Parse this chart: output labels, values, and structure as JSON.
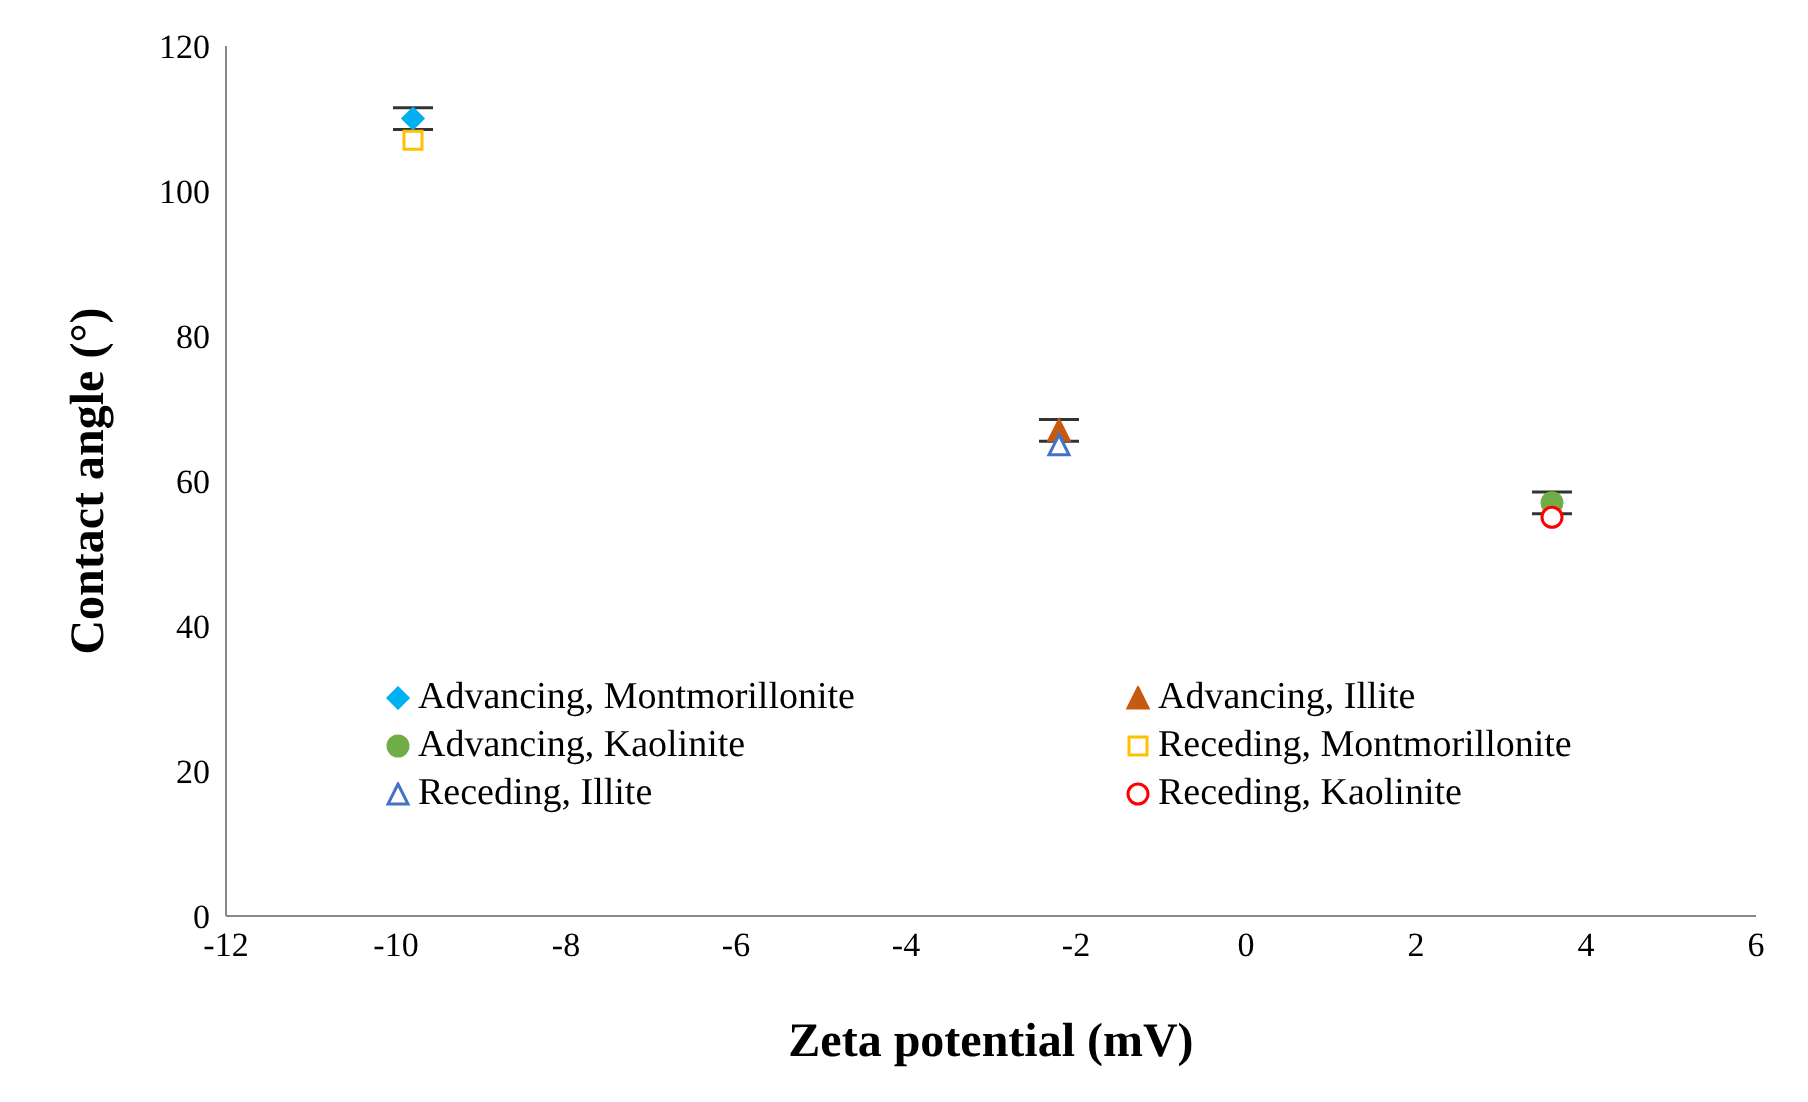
{
  "chart_data": {
    "type": "scatter",
    "xlabel": "Zeta potential (mV)",
    "ylabel": "Contact angle (°)",
    "xlim": [
      -12,
      6
    ],
    "xticks": [
      -12,
      -10,
      -8,
      -6,
      -4,
      -2,
      0,
      2,
      4,
      6
    ],
    "ylim": [
      0,
      120
    ],
    "yticks": [
      0,
      20,
      40,
      60,
      80,
      100,
      120
    ],
    "grid": false,
    "legend": "bottom left",
    "series": [
      {
        "name": "Advancing, Montmorillonite",
        "color": "#00b0f0",
        "marker": "diamond",
        "x": [
          -9.8
        ],
        "values": [
          110
        ],
        "errors": [
          1.5
        ]
      },
      {
        "name": "Advancing, Illite",
        "color": "#c55a11",
        "marker": "triangle",
        "x": [
          -2.2
        ],
        "values": [
          67
        ],
        "errors": [
          1.5
        ]
      },
      {
        "name": "Advancing, Kaolinite",
        "color": "#70ad47",
        "marker": "circle",
        "x": [
          3.6
        ],
        "values": [
          57
        ],
        "errors": [
          1.5
        ]
      },
      {
        "name": "Receding, Montmorillonite",
        "color": "#ffc000",
        "marker": "square",
        "x": [
          -9.8
        ],
        "values": [
          107
        ]
      },
      {
        "name": "Receding, Illite",
        "color": "#4472c4",
        "marker": "triangle",
        "x": [
          -2.2
        ],
        "values": [
          65
        ]
      },
      {
        "name": "Receding, Kaolinite",
        "color": "#ff0000",
        "marker": "circle",
        "x": [
          3.6
        ],
        "values": [
          55
        ]
      }
    ]
  }
}
